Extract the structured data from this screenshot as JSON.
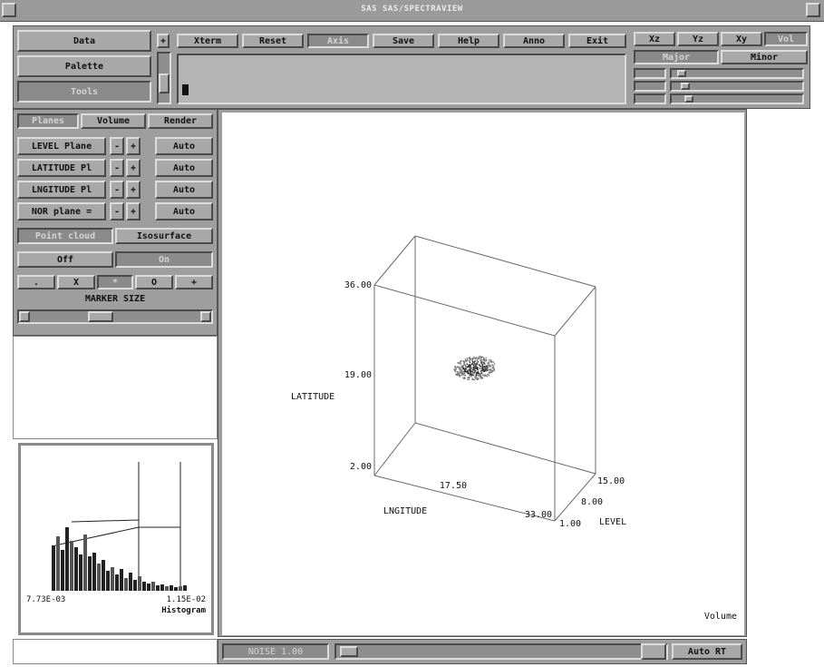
{
  "window": {
    "title": "SAS SAS/SPECTRAVIEW"
  },
  "main_menu": {
    "data": "Data",
    "palette": "Palette",
    "tools": "Tools"
  },
  "toolbar": {
    "xterm": "Xterm",
    "reset": "Reset",
    "axis": "Axis",
    "save": "Save",
    "help": "Help",
    "anno": "Anno",
    "exit": "Exit",
    "scroll_up": "+"
  },
  "view_buttons": {
    "xz": "Xz",
    "yz": "Yz",
    "xy": "Xy",
    "vol": "Vol",
    "major": "Major",
    "minor": "Minor"
  },
  "tabs": {
    "planes": "Planes",
    "volume": "Volume",
    "render": "Render"
  },
  "planes": [
    {
      "label": "LEVEL Plane",
      "minus": "-",
      "plus": "+",
      "auto": "Auto"
    },
    {
      "label": "LATITUDE Pl",
      "minus": "-",
      "plus": "+",
      "auto": "Auto"
    },
    {
      "label": "LNGITUDE Pl",
      "minus": "-",
      "plus": "+",
      "auto": "Auto"
    },
    {
      "label": "NOR plane =",
      "minus": "-",
      "plus": "+",
      "auto": "Auto"
    }
  ],
  "display_mode": {
    "point_cloud": "Point cloud",
    "isosurface": "Isosurface"
  },
  "toggle": {
    "off": "Off",
    "on": "On"
  },
  "markers": [
    ".",
    "X",
    "*",
    "O",
    "+"
  ],
  "marker_size": {
    "label": "MARKER SIZE"
  },
  "histogram": {
    "min": "7.73E-03",
    "max": "1.15E-02",
    "title": "Histogram"
  },
  "plot": {
    "axis_labels": {
      "latitude": "LATITUDE",
      "longitude": "LNGITUDE",
      "level": "LEVEL"
    },
    "lat_ticks": [
      "36.00",
      "19.00",
      "2.00"
    ],
    "lng_ticks": [
      "17.50",
      "33.00"
    ],
    "level_ticks": [
      "15.00",
      "8.00",
      "1.00"
    ],
    "mode_label": "Volume"
  },
  "status": {
    "noise": "NOISE 1.00",
    "auto_rt": "Auto RT"
  }
}
